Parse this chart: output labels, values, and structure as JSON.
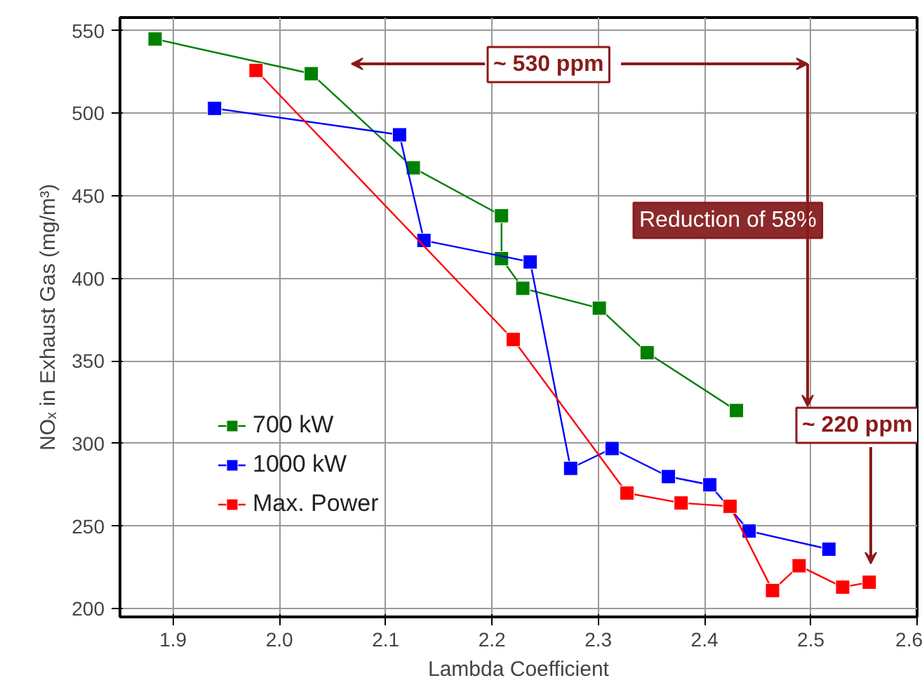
{
  "chart_data": {
    "type": "line",
    "xlabel": "Lambda Coefficient",
    "ylabel": "NOₓ in Exhaust Gas (mg/m³)",
    "xlim": [
      1.85,
      2.6
    ],
    "ylim": [
      195,
      558
    ],
    "xticks": [
      1.9,
      {
        "value": 2.0,
        "label": "2.0"
      },
      2.1,
      2.2,
      2.3,
      2.4,
      2.5,
      2.6
    ],
    "yticks": [
      200,
      250,
      300,
      350,
      400,
      450,
      500,
      550
    ],
    "grid": true,
    "legend": "bottom left",
    "marker": "square",
    "line_style": "solid",
    "series": [
      {
        "name": "700 kW",
        "color": "#008000",
        "x": [
          1.883,
          2.03,
          2.126,
          2.209,
          2.209,
          2.229,
          2.301,
          2.346,
          2.43
        ],
        "values": [
          545,
          524,
          467,
          438,
          412,
          394,
          382,
          355,
          320
        ]
      },
      {
        "name": "1000 kW",
        "color": "#0000ff",
        "x": [
          1.939,
          2.113,
          2.136,
          2.236,
          2.274,
          2.313,
          2.366,
          2.405,
          2.442,
          2.517
        ],
        "values": [
          503,
          487,
          423,
          410,
          285,
          297,
          280,
          275,
          247,
          236
        ]
      },
      {
        "name": "Max. Power",
        "color": "#ff0000",
        "x": [
          1.978,
          2.22,
          2.327,
          2.378,
          2.424,
          2.464,
          2.489,
          2.53,
          2.555
        ],
        "values": [
          526,
          363,
          270,
          264,
          262,
          211,
          226,
          213,
          216
        ]
      }
    ],
    "annotations": [
      "~ 530 ppm",
      "Reduction of 58%",
      "~ 220 ppm"
    ]
  }
}
